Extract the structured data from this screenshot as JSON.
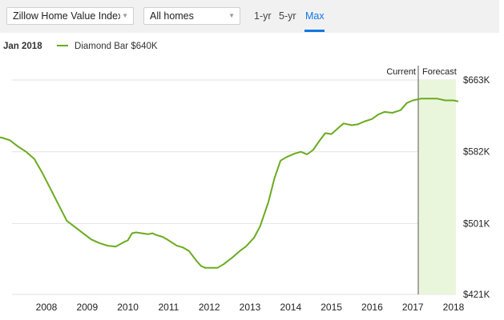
{
  "toolbar": {
    "metric_select": "Zillow Home Value Index",
    "homes_select": "All homes",
    "ranges": [
      "1-yr",
      "5-yr",
      "Max"
    ],
    "active_range": "Max",
    "accent": "#1277e1"
  },
  "legend": {
    "date": "Jan 2018",
    "series": "Diamond Bar $640K",
    "color": "#6aab1f"
  },
  "chart_data": {
    "type": "line",
    "x_ticks": [
      "2008",
      "2009",
      "2010",
      "2011",
      "2012",
      "2013",
      "2014",
      "2015",
      "2016",
      "2017",
      "2018"
    ],
    "y_ticks": [
      "$663K",
      "$582K",
      "$501K",
      "$421K"
    ],
    "ylim": [
      421,
      663
    ],
    "y_unit": "$K",
    "markers": {
      "current": "Current",
      "forecast": "Forecast"
    },
    "forecast_color": "#eaf6dc",
    "line_color": "#6aab1f",
    "grid": true,
    "series": [
      {
        "name": "Diamond Bar",
        "x": [
          2006.7,
          2006.9,
          2007.1,
          2007.3,
          2007.5,
          2007.7,
          2007.9,
          2008.1,
          2008.3,
          2008.5,
          2008.7,
          2008.9,
          2009.1,
          2009.3,
          2009.5,
          2009.7,
          2009.9,
          2010.0,
          2010.1,
          2010.2,
          2010.35,
          2010.5,
          2010.6,
          2010.7,
          2010.85,
          2011.0,
          2011.2,
          2011.35,
          2011.5,
          2011.7,
          2011.8,
          2011.9,
          2012.0,
          2012.2,
          2012.35,
          2012.55,
          2012.75,
          2012.9,
          2013.1,
          2013.25,
          2013.45,
          2013.6,
          2013.75,
          2013.9,
          2014.1,
          2014.25,
          2014.4,
          2014.55,
          2014.7,
          2014.85,
          2015.0,
          2015.15,
          2015.3,
          2015.5,
          2015.65,
          2015.8,
          2016.0,
          2016.15,
          2016.3,
          2016.5,
          2016.7,
          2016.85,
          2017.0,
          2017.2,
          2017.4,
          2017.6,
          2017.8,
          2018.0,
          2018.1
        ],
        "y": [
          599,
          598,
          595,
          588,
          582,
          574,
          558,
          540,
          522,
          504,
          497,
          490,
          483,
          479,
          476,
          475,
          480,
          482,
          490,
          491,
          490,
          489,
          490,
          488,
          486,
          482,
          476,
          474,
          470,
          458,
          453,
          451,
          451,
          451,
          455,
          462,
          470,
          475,
          485,
          498,
          525,
          552,
          572,
          576,
          580,
          582,
          579,
          584,
          594,
          603,
          602,
          608,
          614,
          612,
          613,
          616,
          619,
          624,
          627,
          626,
          629,
          637,
          640,
          642,
          642,
          642,
          640,
          640,
          639
        ]
      }
    ]
  }
}
